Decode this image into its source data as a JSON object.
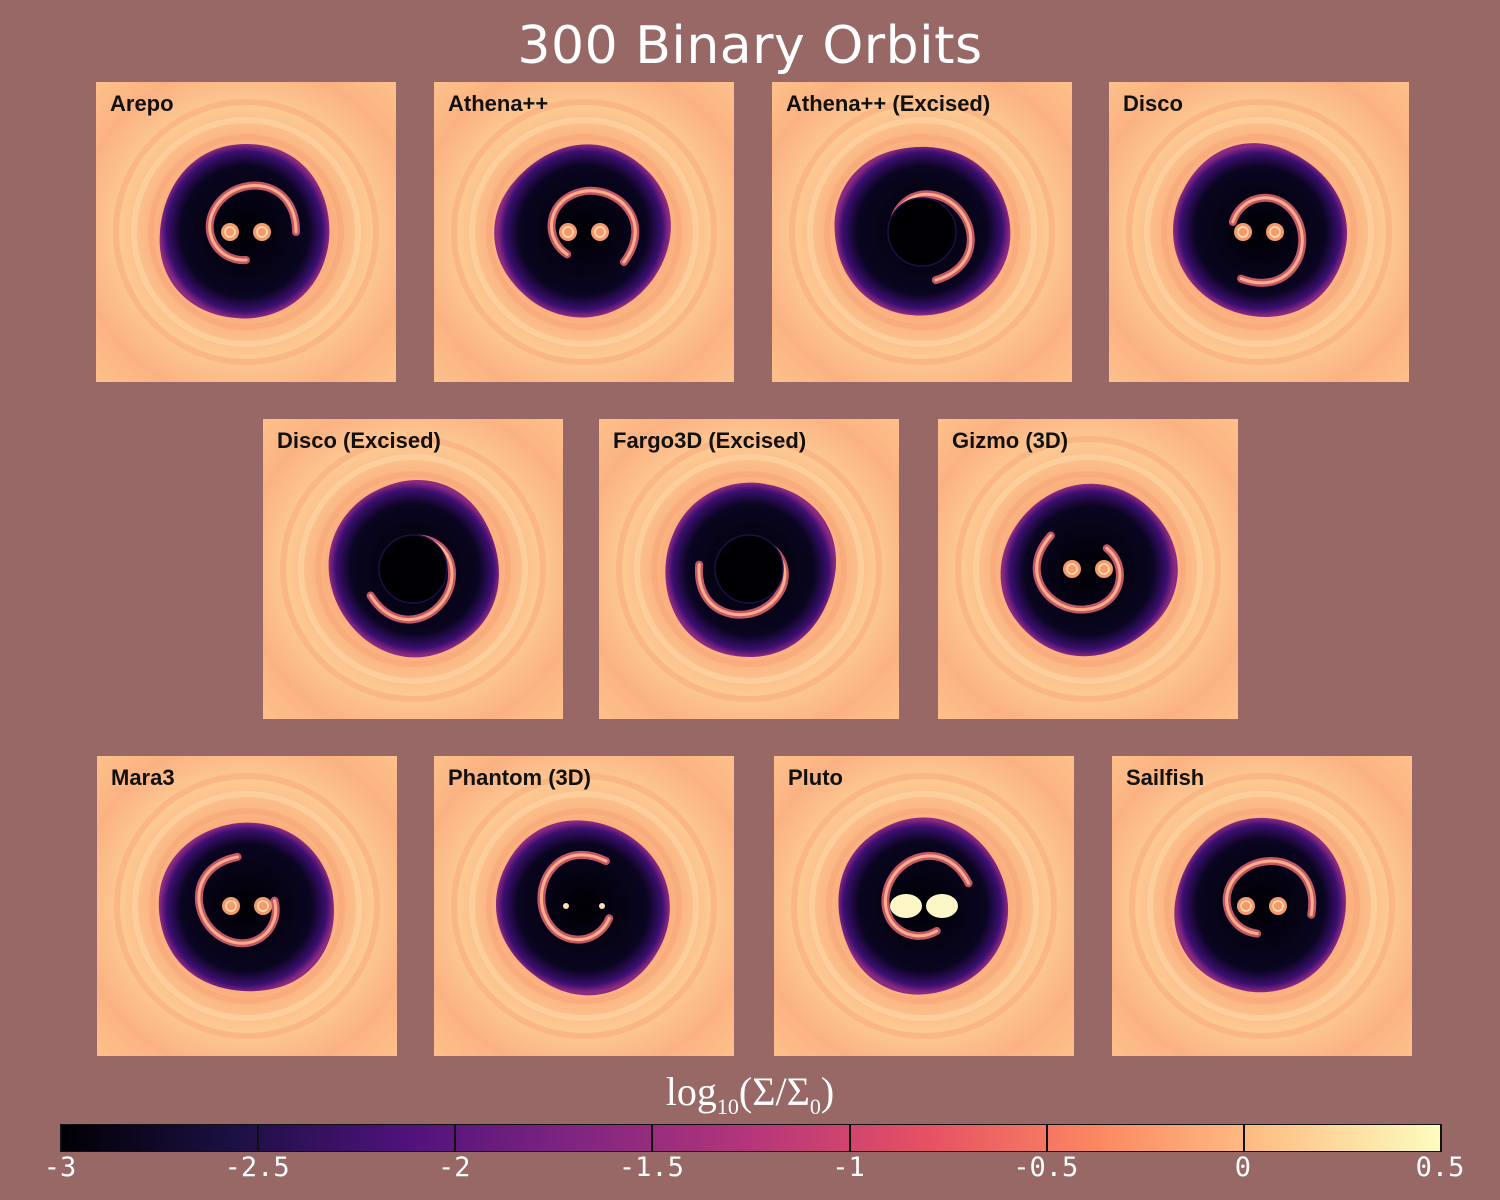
{
  "title": "300 Binary Orbits",
  "colors": {
    "background": "#976865",
    "disk_light": "#fdc993",
    "disk_mid": "#f9a070",
    "cavity": "#000004",
    "streamer": "#812581"
  },
  "panels": [
    {
      "label": "Arepo",
      "row": 1,
      "excised": false,
      "variant": "spiral"
    },
    {
      "label": "Athena++",
      "row": 1,
      "excised": false,
      "variant": "spiral"
    },
    {
      "label": "Athena++ (Excised)",
      "row": 1,
      "excised": true,
      "variant": "spiral"
    },
    {
      "label": "Disco",
      "row": 1,
      "excised": false,
      "variant": "spiral"
    },
    {
      "label": "Disco (Excised)",
      "row": 2,
      "excised": true,
      "variant": "spiral"
    },
    {
      "label": "Fargo3D (Excised)",
      "row": 2,
      "excised": true,
      "variant": "spiral"
    },
    {
      "label": "Gizmo (3D)",
      "row": 2,
      "excised": false,
      "variant": "spiral"
    },
    {
      "label": "Mara3",
      "row": 3,
      "excised": false,
      "variant": "spiral"
    },
    {
      "label": "Phantom (3D)",
      "row": 3,
      "excised": false,
      "variant": "sink"
    },
    {
      "label": "Pluto",
      "row": 3,
      "excised": false,
      "variant": "bright"
    },
    {
      "label": "Sailfish",
      "row": 3,
      "excised": false,
      "variant": "spiral"
    }
  ],
  "colorbar": {
    "label_main": "log",
    "label_sub": "10",
    "label_expr": "(Σ/Σ",
    "label_sub2": "0",
    "label_close": ")",
    "min": -3,
    "max": 0.5,
    "ticks": [
      "-3",
      "-2.5",
      "-2",
      "-1.5",
      "-1",
      "-0.5",
      "0",
      "0.5"
    ],
    "tick_values": [
      -3,
      -2.5,
      -2,
      -1.5,
      -1,
      -0.5,
      0,
      0.5
    ],
    "colormap": "magma"
  }
}
